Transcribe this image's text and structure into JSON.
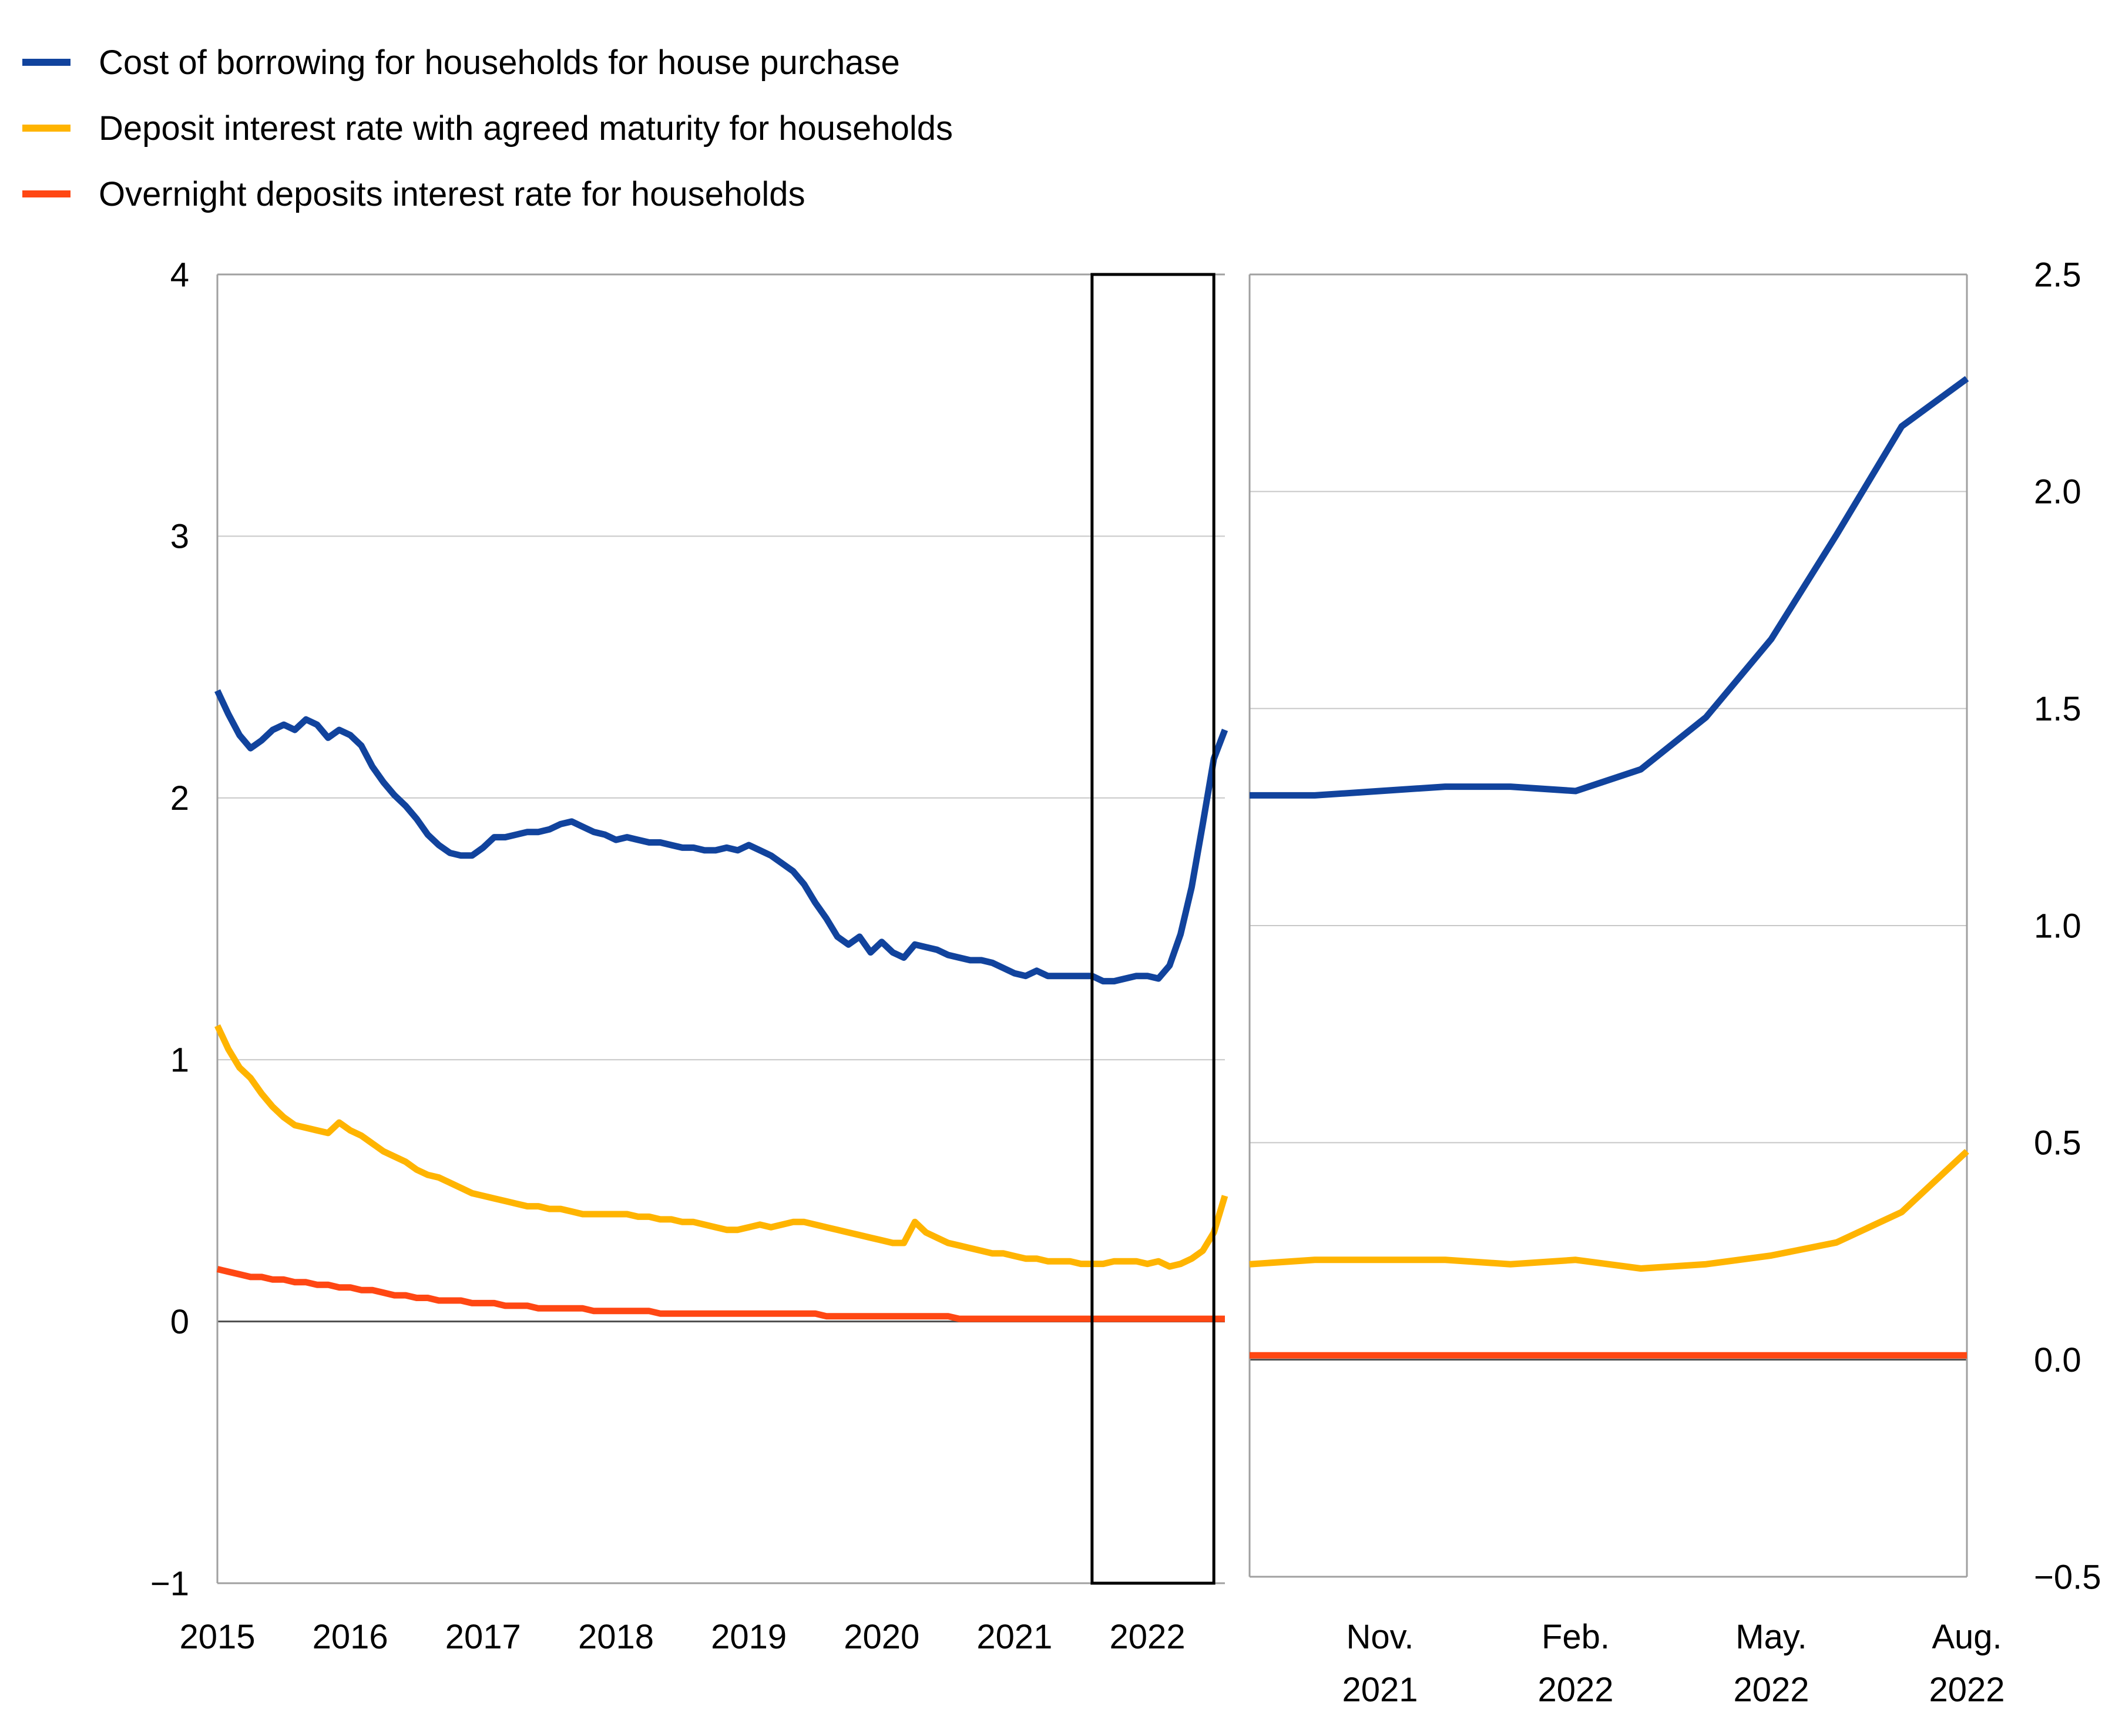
{
  "legend": {
    "items": [
      {
        "label": "Cost of borrowing for households for house purchase",
        "color": "#11439d",
        "series_key": "cost_of_borrowing"
      },
      {
        "label": "Deposit interest rate with agreed maturity for households",
        "color": "#ffb400",
        "series_key": "deposit_agreed_maturity"
      },
      {
        "label": "Overnight deposits interest rate for households",
        "color": "#ff4713",
        "series_key": "overnight_deposits"
      }
    ]
  },
  "colors": {
    "grid": "#c8c8c8",
    "border": "#a0a0a0",
    "zero_line": "#4d4d4d",
    "highlight_box": "#000000"
  },
  "chart_data": [
    {
      "type": "line",
      "panel": "main",
      "title": "",
      "xlabel": "",
      "ylabel": "",
      "x_start": "2015-01",
      "x_end": "2022-08",
      "x_frequency": "monthly",
      "ylim": [
        -1,
        4
      ],
      "grid": true,
      "legend_position": "top-left",
      "yticks": [
        {
          "value": 4,
          "label": "4"
        },
        {
          "value": 3,
          "label": "3"
        },
        {
          "value": 2,
          "label": "2"
        },
        {
          "value": 1,
          "label": "1"
        },
        {
          "value": 0,
          "label": "0"
        },
        {
          "value": -1,
          "label": "−1"
        }
      ],
      "xticks": [
        {
          "month_index": 0,
          "label": "2015"
        },
        {
          "month_index": 12,
          "label": "2016"
        },
        {
          "month_index": 24,
          "label": "2017"
        },
        {
          "month_index": 36,
          "label": "2018"
        },
        {
          "month_index": 48,
          "label": "2019"
        },
        {
          "month_index": 60,
          "label": "2020"
        },
        {
          "month_index": 72,
          "label": "2021"
        },
        {
          "month_index": 84,
          "label": "2022"
        }
      ],
      "highlight_window": {
        "from_month_index": 79,
        "to_month_index": 90,
        "from": "2021-08",
        "to": "2022-07"
      },
      "series": [
        {
          "name": "Cost of borrowing for households for house purchase",
          "color": "#11439d",
          "values": [
            2.41,
            2.32,
            2.24,
            2.19,
            2.22,
            2.26,
            2.28,
            2.26,
            2.3,
            2.28,
            2.23,
            2.26,
            2.24,
            2.2,
            2.12,
            2.06,
            2.01,
            1.97,
            1.92,
            1.86,
            1.82,
            1.79,
            1.78,
            1.78,
            1.81,
            1.85,
            1.85,
            1.86,
            1.87,
            1.87,
            1.88,
            1.9,
            1.91,
            1.89,
            1.87,
            1.86,
            1.84,
            1.85,
            1.84,
            1.83,
            1.83,
            1.82,
            1.81,
            1.81,
            1.8,
            1.8,
            1.81,
            1.8,
            1.82,
            1.8,
            1.78,
            1.75,
            1.72,
            1.67,
            1.6,
            1.54,
            1.47,
            1.44,
            1.47,
            1.41,
            1.45,
            1.41,
            1.39,
            1.44,
            1.43,
            1.42,
            1.4,
            1.39,
            1.38,
            1.38,
            1.37,
            1.35,
            1.33,
            1.32,
            1.34,
            1.32,
            1.32,
            1.32,
            1.32,
            1.32,
            1.3,
            1.3,
            1.31,
            1.32,
            1.32,
            1.31,
            1.36,
            1.48,
            1.66,
            1.9,
            2.15,
            2.26
          ]
        },
        {
          "name": "Deposit interest rate with agreed maturity for households",
          "color": "#ffb400",
          "values": [
            1.13,
            1.04,
            0.97,
            0.93,
            0.87,
            0.82,
            0.78,
            0.75,
            0.74,
            0.73,
            0.72,
            0.76,
            0.73,
            0.71,
            0.68,
            0.65,
            0.63,
            0.61,
            0.58,
            0.56,
            0.55,
            0.53,
            0.51,
            0.49,
            0.48,
            0.47,
            0.46,
            0.45,
            0.44,
            0.44,
            0.43,
            0.43,
            0.42,
            0.41,
            0.41,
            0.41,
            0.41,
            0.41,
            0.4,
            0.4,
            0.39,
            0.39,
            0.38,
            0.38,
            0.37,
            0.36,
            0.35,
            0.35,
            0.36,
            0.37,
            0.36,
            0.37,
            0.38,
            0.38,
            0.37,
            0.36,
            0.35,
            0.34,
            0.33,
            0.32,
            0.31,
            0.3,
            0.3,
            0.38,
            0.34,
            0.32,
            0.3,
            0.29,
            0.28,
            0.27,
            0.26,
            0.26,
            0.25,
            0.24,
            0.24,
            0.23,
            0.23,
            0.23,
            0.22,
            0.22,
            0.22,
            0.23,
            0.23,
            0.23,
            0.22,
            0.23,
            0.21,
            0.22,
            0.24,
            0.27,
            0.34,
            0.48
          ]
        },
        {
          "name": "Overnight deposits interest rate for households",
          "color": "#ff4713",
          "values": [
            0.2,
            0.19,
            0.18,
            0.17,
            0.17,
            0.16,
            0.16,
            0.15,
            0.15,
            0.14,
            0.14,
            0.13,
            0.13,
            0.12,
            0.12,
            0.11,
            0.1,
            0.1,
            0.09,
            0.09,
            0.08,
            0.08,
            0.08,
            0.07,
            0.07,
            0.07,
            0.06,
            0.06,
            0.06,
            0.05,
            0.05,
            0.05,
            0.05,
            0.05,
            0.04,
            0.04,
            0.04,
            0.04,
            0.04,
            0.04,
            0.03,
            0.03,
            0.03,
            0.03,
            0.03,
            0.03,
            0.03,
            0.03,
            0.03,
            0.03,
            0.03,
            0.03,
            0.03,
            0.03,
            0.03,
            0.02,
            0.02,
            0.02,
            0.02,
            0.02,
            0.02,
            0.02,
            0.02,
            0.02,
            0.02,
            0.02,
            0.02,
            0.01,
            0.01,
            0.01,
            0.01,
            0.01,
            0.01,
            0.01,
            0.01,
            0.01,
            0.01,
            0.01,
            0.01,
            0.01,
            0.01,
            0.01,
            0.01,
            0.01,
            0.01,
            0.01,
            0.01,
            0.01,
            0.01,
            0.01,
            0.01,
            0.01
          ]
        }
      ]
    },
    {
      "type": "line",
      "panel": "zoom",
      "title": "",
      "xlabel": "",
      "ylabel": "",
      "x_start": "2021-09",
      "x_end": "2022-08",
      "x_frequency": "monthly",
      "ylim": [
        -0.5,
        2.5
      ],
      "grid": true,
      "y_axis_side": "right",
      "yticks": [
        {
          "value": 2.5,
          "label": "2.5"
        },
        {
          "value": 2.0,
          "label": "2.0"
        },
        {
          "value": 1.5,
          "label": "1.5"
        },
        {
          "value": 1.0,
          "label": "1.0"
        },
        {
          "value": 0.5,
          "label": "0.5"
        },
        {
          "value": 0.0,
          "label": "0.0"
        },
        {
          "value": -0.5,
          "label": "−0.5"
        }
      ],
      "xticks": [
        {
          "month_index": 2,
          "label_line1": "Nov.",
          "label_line2": "2021"
        },
        {
          "month_index": 5,
          "label_line1": "Feb.",
          "label_line2": "2022"
        },
        {
          "month_index": 8,
          "label_line1": "May.",
          "label_line2": "2022"
        },
        {
          "month_index": 11,
          "label_line1": "Aug.",
          "label_line2": "2022"
        }
      ],
      "series": [
        {
          "name": "Cost of borrowing for households for house purchase",
          "color": "#11439d",
          "values": [
            1.3,
            1.3,
            1.31,
            1.32,
            1.32,
            1.31,
            1.36,
            1.48,
            1.66,
            1.9,
            2.15,
            2.26
          ]
        },
        {
          "name": "Deposit interest rate with agreed maturity for households",
          "color": "#ffb400",
          "values": [
            0.22,
            0.23,
            0.23,
            0.23,
            0.22,
            0.23,
            0.21,
            0.22,
            0.24,
            0.27,
            0.34,
            0.48
          ]
        },
        {
          "name": "Overnight deposits interest rate for households",
          "color": "#ff4713",
          "values": [
            0.01,
            0.01,
            0.01,
            0.01,
            0.01,
            0.01,
            0.01,
            0.01,
            0.01,
            0.01,
            0.01,
            0.01
          ]
        }
      ]
    }
  ]
}
